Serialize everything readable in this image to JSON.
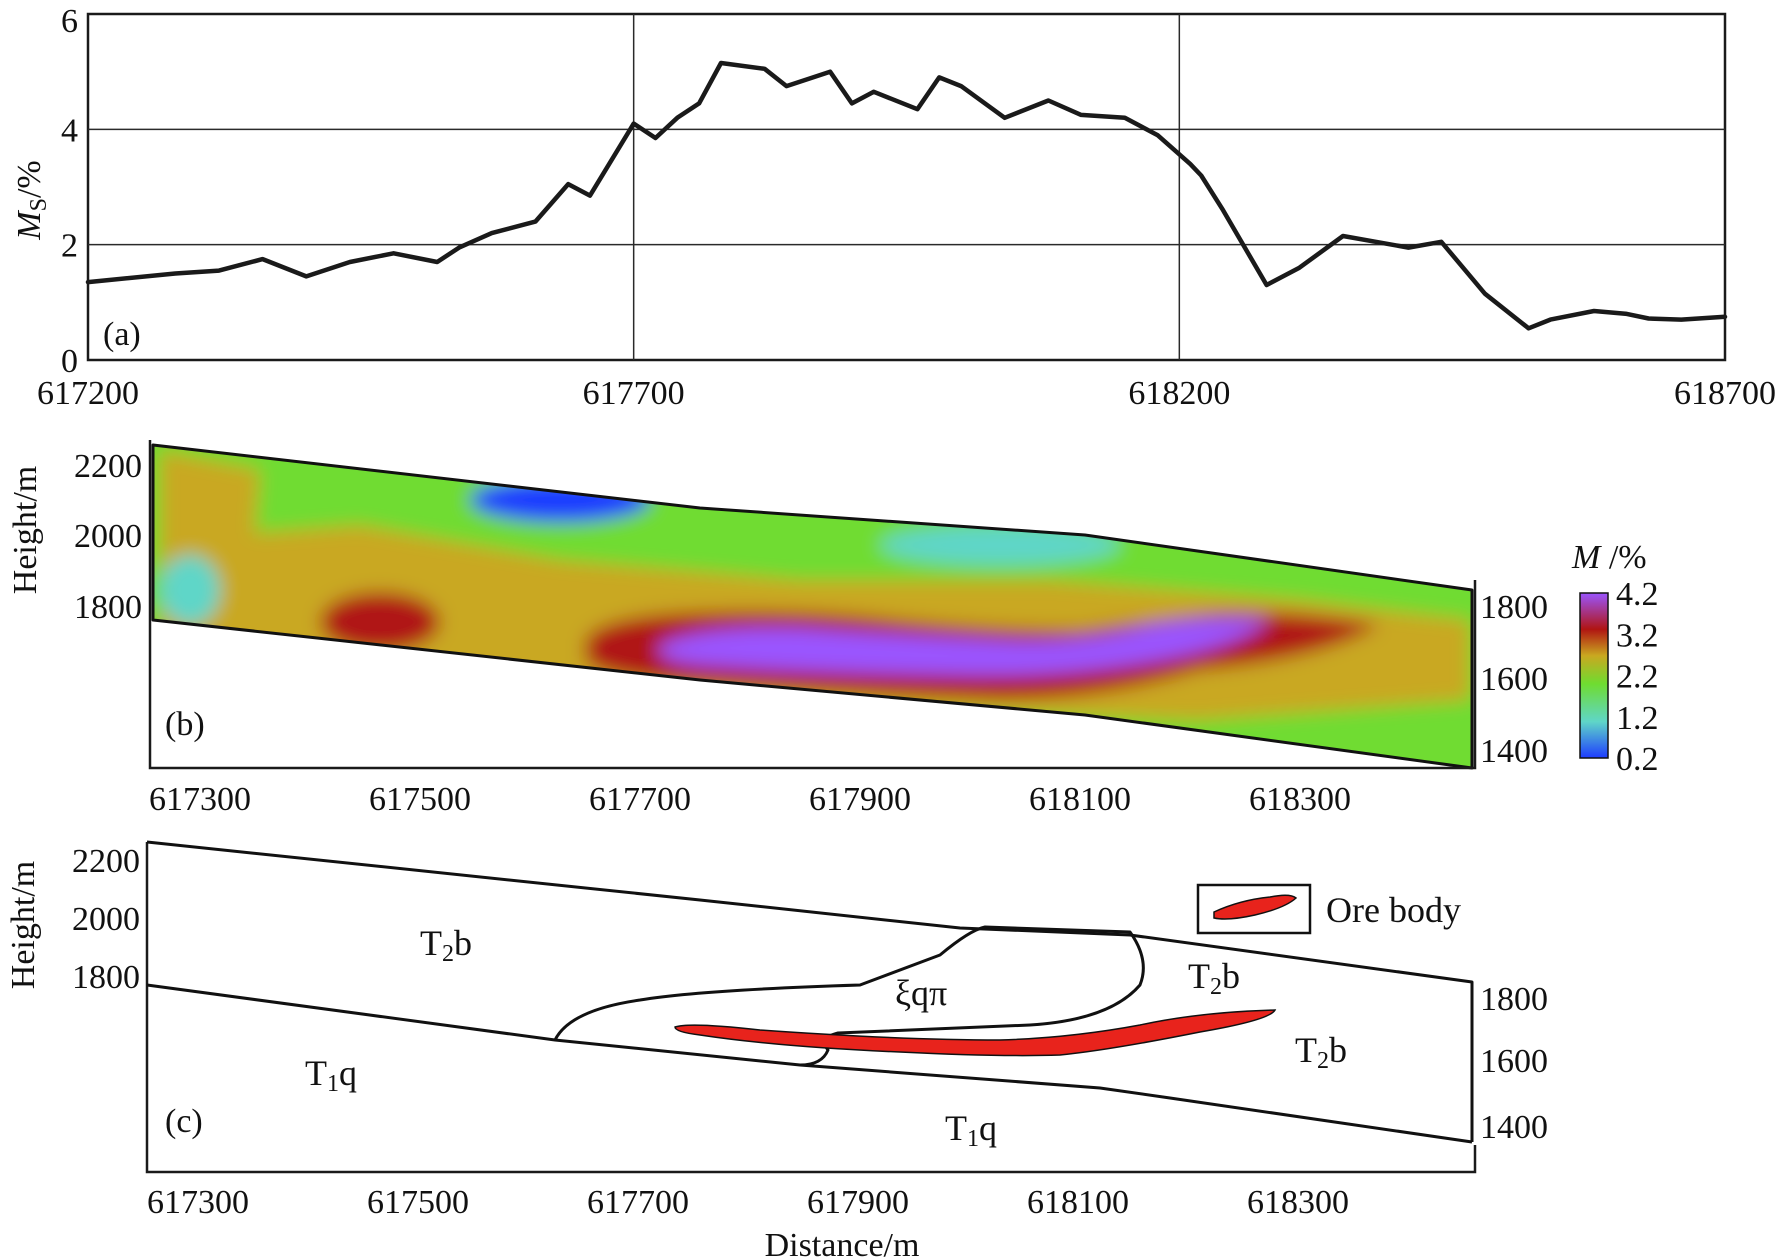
{
  "chart_data": [
    {
      "panel": "(a)",
      "type": "line",
      "ylabel_main": "M",
      "ylabel_sub": "S",
      "ylabel_unit": "/%",
      "xlim": [
        617200,
        618700
      ],
      "ylim": [
        0,
        6
      ],
      "xticks": [
        "617200",
        "617700",
        "618200",
        "618700"
      ],
      "yticks": [
        "0",
        "2",
        "4",
        "6"
      ],
      "grid_x": [
        617700,
        618200
      ],
      "grid_y": [
        2,
        4
      ],
      "x": [
        617200,
        617280,
        617320,
        617360,
        617400,
        617440,
        617480,
        617520,
        617540,
        617570,
        617610,
        617640,
        617660,
        617700,
        617720,
        617740,
        617760,
        617780,
        617820,
        617840,
        617880,
        617900,
        617920,
        617960,
        617980,
        618000,
        618040,
        618080,
        618110,
        618150,
        618180,
        618210,
        618220,
        618240,
        618280,
        618310,
        618350,
        618380,
        618410,
        618440,
        618480,
        618520,
        618540,
        618580,
        618610,
        618630,
        618660,
        618700
      ],
      "y": [
        1.35,
        1.5,
        1.55,
        1.75,
        1.45,
        1.7,
        1.85,
        1.7,
        1.95,
        2.2,
        2.4,
        3.05,
        2.85,
        4.1,
        3.85,
        4.2,
        4.45,
        5.15,
        5.05,
        4.75,
        5.0,
        4.45,
        4.65,
        4.35,
        4.9,
        4.75,
        4.2,
        4.5,
        4.25,
        4.2,
        3.9,
        3.4,
        3.2,
        2.6,
        1.3,
        1.6,
        2.15,
        2.05,
        1.95,
        2.05,
        1.15,
        0.55,
        0.7,
        0.85,
        0.8,
        0.72,
        0.7,
        0.75
      ],
      "title": "(a)"
    },
    {
      "panel": "(b)",
      "type": "heatmap",
      "ylabel": "Height/m",
      "xlim": [
        617260,
        618460
      ],
      "xticks": [
        "617300",
        "617500",
        "617700",
        "617900",
        "618100",
        "618300"
      ],
      "yticks_left": [
        "1800",
        "2000",
        "2200"
      ],
      "yticks_right": [
        "1400",
        "1600",
        "1800"
      ],
      "colorbar_title_main": "M",
      "colorbar_title_unit": " /%",
      "colorbar_ticks": [
        "0.2",
        "1.2",
        "2.2",
        "3.2",
        "4.2"
      ],
      "colorbar_values": [
        0.2,
        1.2,
        2.2,
        3.2,
        4.2
      ],
      "colors": [
        "#1e3cff",
        "#5fd6c8",
        "#6fdc30",
        "#c9a820",
        "#b01512",
        "#9a55ff"
      ],
      "title": "(b)"
    },
    {
      "panel": "(c)",
      "type": "geologic-section",
      "ylabel": "Height/m",
      "xlabel": "Distance/m",
      "xticks": [
        "617300",
        "617500",
        "617700",
        "617900",
        "618100",
        "618300"
      ],
      "yticks_left": [
        "1800",
        "2000",
        "2200"
      ],
      "yticks_right": [
        "1400",
        "1600",
        "1800"
      ],
      "units": {
        "T2b_main": "T",
        "T2b_sub": "2",
        "T2b_tail": "b",
        "T1q_main": "T",
        "T1q_sub": "1",
        "T1q_tail": "q",
        "intrusion": "ξqπ"
      },
      "legend_label": "Ore body",
      "ore_color": "#e8231c",
      "title": "(c)"
    }
  ]
}
